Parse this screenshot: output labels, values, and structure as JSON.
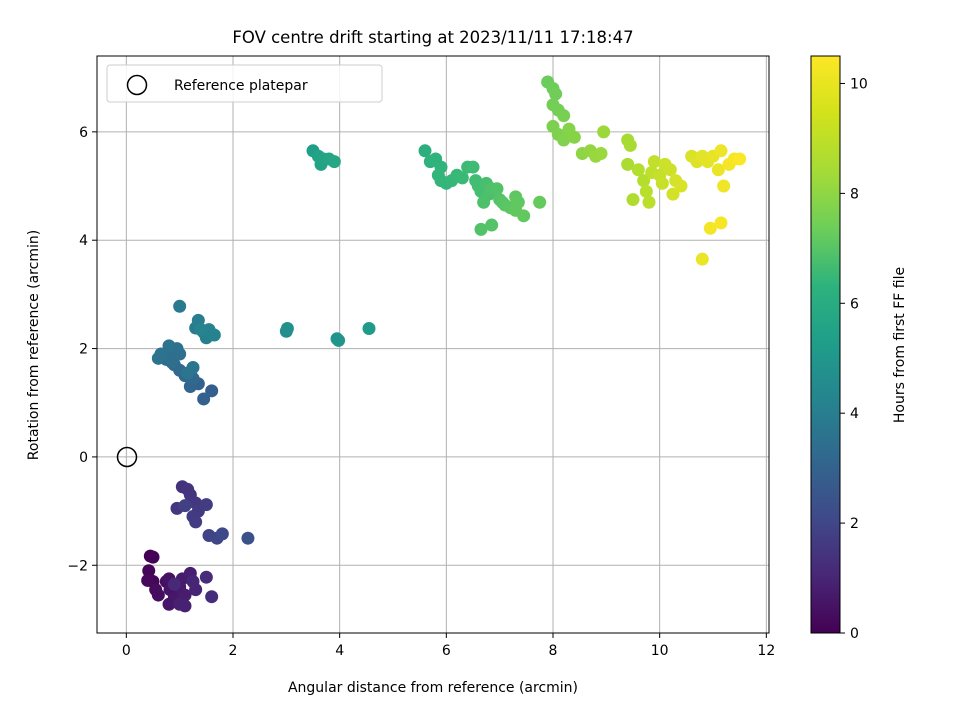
{
  "chart_data": {
    "type": "scatter",
    "title": "FOV centre drift starting at 2023/11/11 17:18:47",
    "xlabel": "Angular distance from reference (arcmin)",
    "ylabel": "Rotation from reference (arcmin)",
    "colorbar_label": "Hours from first FF file",
    "xlim": [
      -0.55,
      12.05
    ],
    "ylim": [
      -3.25,
      7.4
    ],
    "x_ticks": [
      0,
      2,
      4,
      6,
      8,
      10,
      12
    ],
    "y_ticks": [
      -2,
      0,
      2,
      4,
      6
    ],
    "colorbar_ticks": [
      0,
      2,
      4,
      6,
      8,
      10
    ],
    "colorbar_range": [
      0,
      10.5
    ],
    "colormap": "viridis",
    "grid": true,
    "legend": {
      "location": "top-left",
      "entries": [
        "Reference platepar"
      ]
    },
    "reference_point": {
      "x": 0,
      "y": 0
    },
    "points": [
      [
        0.45,
        -1.83,
        0.0
      ],
      [
        0.5,
        -1.85,
        0.05
      ],
      [
        0.42,
        -2.1,
        0.1
      ],
      [
        0.5,
        -2.3,
        0.15
      ],
      [
        0.4,
        -2.28,
        0.2
      ],
      [
        0.55,
        -2.45,
        0.3
      ],
      [
        0.6,
        -2.55,
        0.35
      ],
      [
        0.75,
        -2.3,
        0.4
      ],
      [
        0.8,
        -2.25,
        0.5
      ],
      [
        0.82,
        -2.45,
        0.55
      ],
      [
        0.9,
        -2.6,
        0.6
      ],
      [
        0.8,
        -2.72,
        0.65
      ],
      [
        0.95,
        -2.6,
        0.7
      ],
      [
        1.0,
        -2.4,
        0.75
      ],
      [
        1.05,
        -2.25,
        0.8
      ],
      [
        1.1,
        -2.55,
        0.85
      ],
      [
        1.2,
        -2.15,
        0.9
      ],
      [
        1.0,
        -2.72,
        0.95
      ],
      [
        1.1,
        -2.75,
        1.0
      ],
      [
        1.3,
        -2.45,
        1.05
      ],
      [
        1.25,
        -2.3,
        1.1
      ],
      [
        0.9,
        -2.35,
        1.2
      ],
      [
        1.5,
        -2.22,
        1.3
      ],
      [
        1.6,
        -2.58,
        1.35
      ],
      [
        1.05,
        -0.55,
        1.5
      ],
      [
        1.15,
        -0.6,
        1.55
      ],
      [
        1.2,
        -0.7,
        1.6
      ],
      [
        0.95,
        -0.95,
        1.65
      ],
      [
        1.3,
        -0.85,
        1.7
      ],
      [
        1.35,
        -1.0,
        1.75
      ],
      [
        1.25,
        -1.1,
        1.8
      ],
      [
        1.5,
        -0.88,
        1.85
      ],
      [
        1.3,
        -1.2,
        1.9
      ],
      [
        1.1,
        -0.9,
        2.0
      ],
      [
        1.55,
        -1.45,
        2.1
      ],
      [
        1.7,
        -1.5,
        2.2
      ],
      [
        1.8,
        -1.42,
        2.3
      ],
      [
        2.28,
        -1.5,
        2.6
      ],
      [
        1.6,
        1.22,
        3.1
      ],
      [
        1.45,
        1.07,
        3.2
      ],
      [
        1.35,
        1.35,
        3.3
      ],
      [
        1.2,
        1.3,
        3.4
      ],
      [
        1.25,
        1.45,
        3.5
      ],
      [
        1.1,
        1.5,
        3.55
      ],
      [
        1.0,
        1.6,
        3.6
      ],
      [
        0.9,
        1.7,
        3.65
      ],
      [
        0.75,
        1.8,
        3.7
      ],
      [
        0.8,
        1.85,
        3.75
      ],
      [
        0.85,
        1.75,
        3.8
      ],
      [
        1.0,
        1.9,
        3.85
      ],
      [
        0.95,
        2.0,
        3.9
      ],
      [
        0.8,
        2.05,
        3.95
      ],
      [
        0.65,
        1.9,
        4.0
      ],
      [
        0.6,
        1.82,
        4.05
      ],
      [
        1.25,
        1.65,
        4.1
      ],
      [
        1.15,
        1.55,
        4.15
      ],
      [
        1.0,
        2.78,
        4.3
      ],
      [
        1.3,
        2.38,
        4.4
      ],
      [
        1.35,
        2.52,
        4.45
      ],
      [
        1.45,
        2.3,
        4.5
      ],
      [
        1.5,
        2.2,
        4.55
      ],
      [
        1.55,
        2.35,
        4.6
      ],
      [
        1.65,
        2.25,
        4.7
      ],
      [
        1.4,
        2.35,
        4.75
      ],
      [
        3.0,
        2.32,
        5.2
      ],
      [
        3.02,
        2.37,
        5.25
      ],
      [
        3.95,
        2.18,
        5.4
      ],
      [
        3.98,
        2.15,
        5.45
      ],
      [
        4.55,
        2.37,
        5.7
      ],
      [
        3.5,
        5.65,
        5.9
      ],
      [
        3.6,
        5.55,
        6.0
      ],
      [
        3.65,
        5.4,
        6.05
      ],
      [
        3.7,
        5.5,
        6.1
      ],
      [
        3.8,
        5.5,
        6.15
      ],
      [
        3.9,
        5.45,
        6.2
      ],
      [
        5.6,
        5.65,
        6.6
      ],
      [
        5.7,
        5.45,
        6.7
      ],
      [
        5.8,
        5.5,
        6.75
      ],
      [
        5.9,
        5.35,
        6.8
      ],
      [
        5.85,
        5.2,
        6.85
      ],
      [
        5.9,
        5.1,
        6.9
      ],
      [
        6.0,
        5.05,
        6.95
      ],
      [
        6.1,
        5.1,
        7.0
      ],
      [
        6.2,
        5.2,
        7.05
      ],
      [
        6.3,
        5.15,
        7.1
      ],
      [
        6.4,
        5.35,
        7.15
      ],
      [
        6.5,
        5.35,
        7.2
      ],
      [
        6.55,
        5.1,
        7.25
      ],
      [
        6.6,
        5.0,
        7.3
      ],
      [
        6.65,
        4.9,
        7.35
      ],
      [
        6.75,
        5.05,
        7.4
      ],
      [
        6.8,
        4.85,
        7.45
      ],
      [
        6.7,
        4.7,
        7.5
      ],
      [
        6.85,
        4.95,
        7.55
      ],
      [
        6.95,
        4.95,
        7.6
      ],
      [
        7.0,
        4.75,
        7.65
      ],
      [
        7.05,
        4.7,
        7.7
      ],
      [
        7.1,
        4.65,
        7.75
      ],
      [
        7.2,
        4.6,
        7.8
      ],
      [
        7.3,
        4.8,
        7.85
      ],
      [
        7.35,
        4.7,
        7.9
      ],
      [
        7.3,
        4.55,
        7.92
      ],
      [
        7.45,
        4.45,
        7.95
      ],
      [
        6.65,
        4.2,
        7.6
      ],
      [
        6.85,
        4.28,
        7.65
      ],
      [
        7.75,
        4.7,
        8.0
      ],
      [
        7.9,
        6.92,
        8.1
      ],
      [
        8.0,
        6.8,
        8.15
      ],
      [
        8.05,
        6.7,
        8.2
      ],
      [
        8.0,
        6.5,
        8.25
      ],
      [
        8.1,
        6.4,
        8.3
      ],
      [
        8.2,
        6.3,
        8.35
      ],
      [
        8.0,
        6.1,
        8.4
      ],
      [
        8.1,
        5.95,
        8.45
      ],
      [
        8.2,
        5.85,
        8.5
      ],
      [
        8.3,
        6.05,
        8.55
      ],
      [
        8.4,
        5.9,
        8.6
      ],
      [
        8.55,
        5.6,
        8.7
      ],
      [
        8.7,
        5.65,
        8.8
      ],
      [
        8.8,
        5.55,
        8.85
      ],
      [
        8.9,
        5.6,
        8.9
      ],
      [
        8.95,
        6.0,
        8.95
      ],
      [
        9.4,
        5.85,
        9.1
      ],
      [
        9.45,
        5.75,
        9.15
      ],
      [
        9.4,
        5.4,
        9.2
      ],
      [
        9.5,
        4.75,
        9.25
      ],
      [
        9.6,
        5.3,
        9.3
      ],
      [
        9.7,
        5.1,
        9.35
      ],
      [
        9.75,
        4.9,
        9.4
      ],
      [
        9.8,
        4.7,
        9.45
      ],
      [
        9.85,
        5.25,
        9.5
      ],
      [
        9.9,
        5.45,
        9.55
      ],
      [
        10.0,
        5.2,
        9.6
      ],
      [
        10.05,
        5.05,
        9.65
      ],
      [
        10.1,
        5.4,
        9.7
      ],
      [
        10.2,
        5.3,
        9.75
      ],
      [
        10.25,
        4.85,
        9.8
      ],
      [
        10.3,
        5.1,
        9.85
      ],
      [
        10.4,
        5.0,
        9.9
      ],
      [
        10.6,
        5.55,
        9.95
      ],
      [
        10.7,
        5.45,
        10.0
      ],
      [
        10.8,
        5.55,
        10.05
      ],
      [
        10.9,
        5.45,
        10.1
      ],
      [
        11.0,
        5.55,
        10.15
      ],
      [
        11.1,
        5.3,
        10.2
      ],
      [
        11.15,
        5.65,
        10.25
      ],
      [
        11.2,
        5.0,
        10.3
      ],
      [
        11.3,
        5.4,
        10.35
      ],
      [
        11.4,
        5.5,
        10.4
      ],
      [
        11.5,
        5.5,
        10.45
      ],
      [
        10.95,
        4.22,
        10.35
      ],
      [
        11.15,
        4.32,
        10.4
      ],
      [
        10.8,
        3.65,
        10.2
      ]
    ]
  }
}
